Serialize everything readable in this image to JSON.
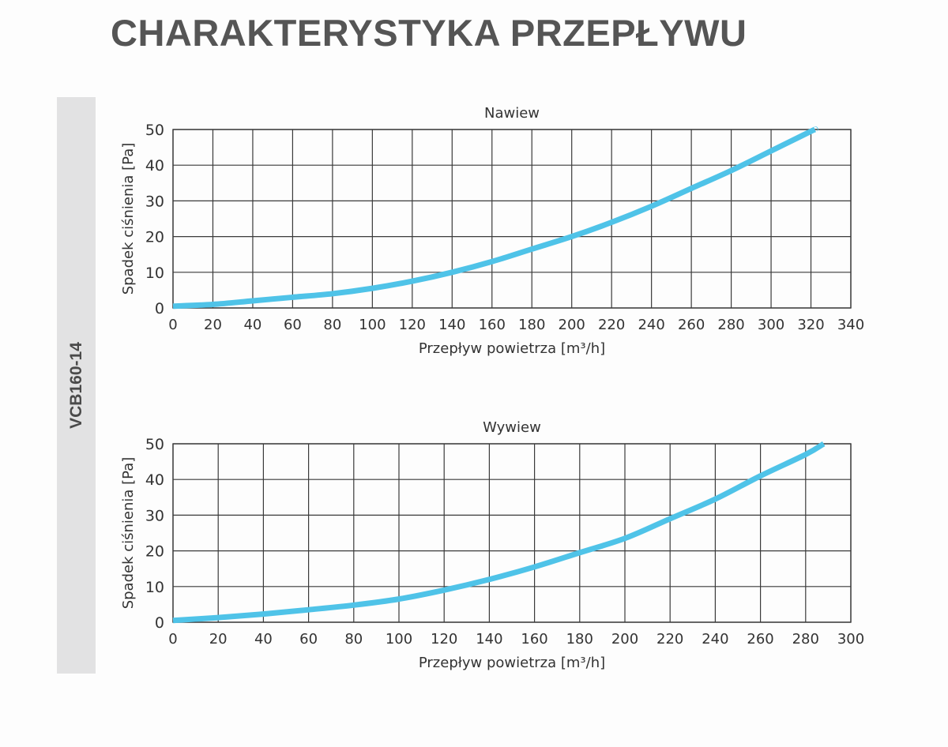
{
  "page": {
    "title": "CHARAKTERYSTYKA PRZEPŁYWU",
    "side_label": "VCB160-14"
  },
  "colors": {
    "curve": "#4fc3e8",
    "grid": "#3a3a3a",
    "title_text": "#555555",
    "side_band": "#e2e2e3"
  },
  "chart_data": [
    {
      "type": "line",
      "title": "Nawiew",
      "xlabel": "Przepływ powietrza [m³/h]",
      "ylabel": "Spadek ciśnienia [Pa]",
      "xlim": [
        0,
        340
      ],
      "ylim": [
        0,
        50
      ],
      "xticks": [
        0,
        20,
        40,
        60,
        80,
        100,
        120,
        140,
        160,
        180,
        200,
        220,
        240,
        260,
        280,
        300,
        320,
        340
      ],
      "yticks": [
        0,
        10,
        20,
        30,
        40,
        50
      ],
      "grid": true,
      "legend": null,
      "series": [
        {
          "name": "Nawiew",
          "x": [
            0,
            20,
            40,
            60,
            80,
            100,
            120,
            140,
            160,
            180,
            200,
            220,
            240,
            260,
            280,
            300,
            320,
            322
          ],
          "y": [
            0.5,
            1,
            2,
            3,
            4,
            5.5,
            7.5,
            10,
            13,
            16.5,
            20,
            24,
            28.5,
            33.5,
            38.5,
            44,
            49.5,
            50
          ]
        }
      ]
    },
    {
      "type": "line",
      "title": "Wywiew",
      "xlabel": "Przepływ powietrza [m³/h]",
      "ylabel": "Spadek ciśnienia [Pa]",
      "xlim": [
        0,
        300
      ],
      "ylim": [
        0,
        50
      ],
      "xticks": [
        0,
        20,
        40,
        60,
        80,
        100,
        120,
        140,
        160,
        180,
        200,
        220,
        240,
        260,
        280,
        300
      ],
      "yticks": [
        0,
        10,
        20,
        30,
        40,
        50
      ],
      "grid": true,
      "legend": null,
      "series": [
        {
          "name": "Wywiew",
          "x": [
            0,
            20,
            40,
            60,
            80,
            100,
            120,
            140,
            160,
            180,
            200,
            220,
            240,
            260,
            280,
            288
          ],
          "y": [
            0.5,
            1.3,
            2.3,
            3.5,
            4.8,
            6.5,
            9,
            12,
            15.5,
            19.5,
            23.5,
            29,
            34.5,
            41,
            47,
            50
          ]
        }
      ]
    }
  ]
}
